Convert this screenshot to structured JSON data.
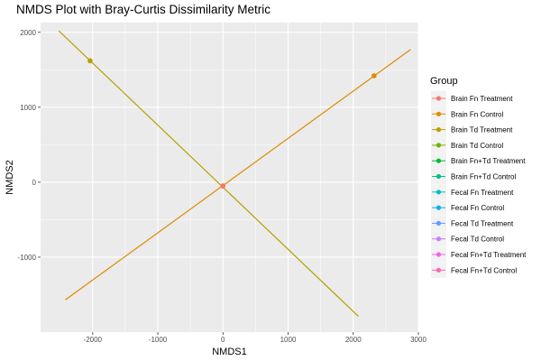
{
  "chart_data": {
    "type": "line",
    "title": "NMDS Plot with Bray-Curtis Dissimilarity Metric",
    "xlabel": "NMDS1",
    "ylabel": "NMDS2",
    "xlim": [
      -2800,
      3000
    ],
    "ylim": [
      -2000,
      2130
    ],
    "x_ticks": [
      -2000,
      -1000,
      0,
      1000,
      2000,
      3000
    ],
    "x_tick_labels": [
      "-2000",
      "-1000",
      "0",
      "1000",
      "2000",
      "3000"
    ],
    "y_ticks": [
      -1000,
      0,
      1000,
      2000
    ],
    "y_tick_labels": [
      "-1000",
      "0",
      "1000",
      "2000"
    ],
    "grid": true,
    "panel_background": "#ebebeb",
    "legend": {
      "title": "Group",
      "position": "right",
      "entries": [
        {
          "label": "Brain Fn Treatment",
          "color": "#F8766D"
        },
        {
          "label": "Brain Fn Control",
          "color": "#DE8C00"
        },
        {
          "label": "Brain Td Treatment",
          "color": "#B79F00"
        },
        {
          "label": "Brain Td Control",
          "color": "#7CAE00"
        },
        {
          "label": "Brain Fn+Td Treatment",
          "color": "#00BA38"
        },
        {
          "label": "Brain Fn+Td Control",
          "color": "#00C08B"
        },
        {
          "label": "Fecal Fn Treatment",
          "color": "#00BFC4"
        },
        {
          "label": "Fecal Fn Control",
          "color": "#00B4F0"
        },
        {
          "label": "Fecal Td Treatment",
          "color": "#619CFF"
        },
        {
          "label": "Fecal Td Control",
          "color": "#C77CFF"
        },
        {
          "label": "Fecal Fn+Td Treatment",
          "color": "#F564E3"
        },
        {
          "label": "Fecal Fn+Td Control",
          "color": "#FF64B0"
        }
      ]
    },
    "lines": [
      {
        "color": "#DE8C00",
        "points": [
          [
            -2420,
            -1570
          ],
          [
            2880,
            1770
          ]
        ]
      },
      {
        "color": "#B79F00",
        "points": [
          [
            -2520,
            2020
          ],
          [
            2080,
            -1790
          ]
        ]
      }
    ],
    "points": [
      {
        "x": -2040,
        "y": 1620,
        "color": "#B79F00"
      },
      {
        "x": 2320,
        "y": 1420,
        "color": "#DE8C00"
      },
      {
        "x": 0,
        "y": -50,
        "color": "#B79F00"
      },
      {
        "x": 0,
        "y": -50,
        "color": "#DE8C00"
      },
      {
        "x": 0,
        "y": -50,
        "color": "#F8766D"
      }
    ]
  }
}
